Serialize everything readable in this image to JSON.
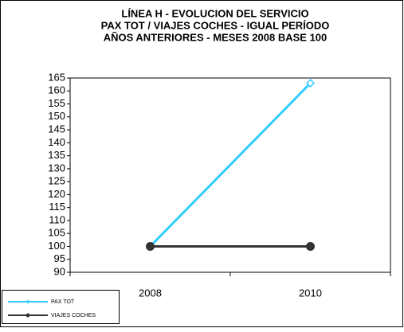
{
  "chart_data": {
    "type": "line",
    "title": [
      "LÍNEA H - EVOLUCION DEL SERVICIO",
      "PAX TOT / VIAJES COCHES - IGUAL PERÍODO",
      "AÑOS ANTERIORES - MESES 2008 BASE 100"
    ],
    "categories": [
      "2008",
      "2010"
    ],
    "series": [
      {
        "name": "PAX TOT",
        "color": "#33ccff",
        "marker": "diamond",
        "values": [
          100,
          163
        ]
      },
      {
        "name": "VIAJES COCHES",
        "color": "#333333",
        "marker": "circle",
        "values": [
          100,
          100
        ]
      }
    ],
    "ylim": [
      90,
      165
    ],
    "yticks": [
      90,
      95,
      100,
      105,
      110,
      115,
      120,
      125,
      130,
      135,
      140,
      145,
      150,
      155,
      160,
      165
    ],
    "legend": "bottom-left"
  }
}
